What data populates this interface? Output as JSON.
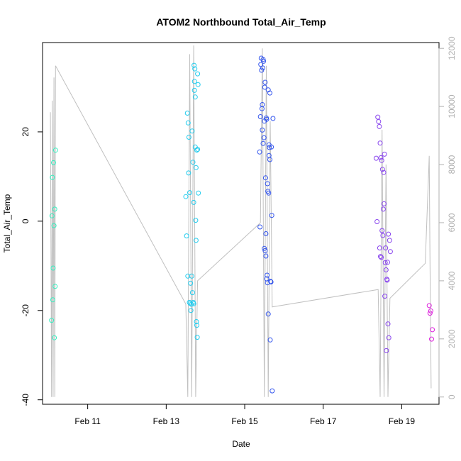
{
  "chart_data": {
    "type": "scatter",
    "title": "ATOM2 Northbound Total_Air_Temp",
    "xlabel": "Date",
    "ylabel": "Total_Air_Temp",
    "xlim": [
      9.85,
      19.95
    ],
    "ylim": [
      -41,
      40
    ],
    "y2lim": [
      -250,
      12200
    ],
    "x_ticks": [
      11,
      13,
      15,
      17,
      19
    ],
    "x_tick_labels": [
      "Feb 11",
      "Feb 13",
      "Feb 15",
      "Feb 17",
      "Feb 19"
    ],
    "y_ticks": [
      -40,
      -20,
      0,
      20
    ],
    "y_tick_labels": [
      "-40",
      "-20",
      "0",
      "20"
    ],
    "y2_ticks": [
      0,
      2000,
      4000,
      6000,
      8000,
      10000,
      12000
    ],
    "y2_tick_labels": [
      "0",
      "2000",
      "4000",
      "6000",
      "8000",
      "10000",
      "12000"
    ],
    "grid": false,
    "legend": "none",
    "series": [
      {
        "color": "#33f0c0",
        "x": [
          10.08,
          10.09,
          10.1,
          10.11,
          10.12,
          10.13,
          10.14,
          10.15,
          10.16,
          10.17,
          10.18
        ],
        "y": [
          -22.2,
          1.2,
          9.8,
          -17.6,
          -10.5,
          13.1,
          -1.0,
          -26.1,
          2.7,
          -14.6,
          15.9
        ]
      },
      {
        "color": "#22ccee",
        "x": [
          13.5,
          13.52,
          13.54,
          13.56,
          13.58,
          13.6,
          13.62,
          13.64,
          13.66,
          13.68,
          13.7,
          13.71,
          13.72,
          13.73,
          13.74,
          13.75,
          13.76,
          13.77,
          13.78,
          13.79,
          13.8,
          13.81,
          13.82,
          13.65,
          13.67,
          13.69,
          13.55,
          13.57,
          13.59,
          13.61,
          13.63,
          13.72,
          13.74,
          13.76,
          13.78,
          13.8,
          13.7
        ],
        "y": [
          5.5,
          -3.3,
          24.2,
          22.0,
          18.8,
          6.4,
          -13.9,
          -18.6,
          20.2,
          13.2,
          4.2,
          34.9,
          31.3,
          34.1,
          27.8,
          0.2,
          -4.3,
          -22.5,
          -23.3,
          -26.0,
          33.0,
          30.6,
          6.3,
          -12.3,
          -16.0,
          -18.2,
          -12.3,
          10.8,
          -18.2,
          -18.4,
          -20.0,
          29.3,
          16.6,
          12.0,
          15.9,
          16.1,
          -18.5
        ]
      },
      {
        "color": "#3355ee",
        "x": [
          15.38,
          15.39,
          15.4,
          15.41,
          15.42,
          15.43,
          15.44,
          15.45,
          15.46,
          15.47,
          15.48,
          15.49,
          15.5,
          15.51,
          15.52,
          15.53,
          15.54,
          15.55,
          15.56,
          15.57,
          15.58,
          15.59,
          15.6,
          15.61,
          15.62,
          15.63,
          15.64,
          15.65,
          15.66,
          15.67,
          15.68,
          15.69,
          15.7,
          15.72,
          15.5,
          15.52,
          15.54,
          15.56,
          15.58,
          15.6,
          15.62,
          15.64,
          15.45,
          15.47
        ],
        "y": [
          15.5,
          -1.3,
          23.4,
          35.1,
          36.5,
          33.8,
          25.2,
          26.1,
          34.3,
          36.2,
          35.8,
          18.7,
          22.4,
          30.0,
          31.1,
          9.7,
          -7.8,
          23.1,
          22.8,
          -12.1,
          8.4,
          6.7,
          -20.8,
          6.3,
          17.1,
          16.5,
          28.7,
          -26.6,
          -13.5,
          -13.6,
          16.6,
          1.3,
          -38.0,
          23.0,
          -6.1,
          -6.6,
          -2.8,
          -12.9,
          -13.8,
          29.4,
          14.7,
          13.8,
          20.4,
          17.4
        ]
      },
      {
        "color": "#8844ee",
        "x": [
          18.35,
          18.37,
          18.39,
          18.41,
          18.43,
          18.45,
          18.47,
          18.49,
          18.51,
          18.53,
          18.55,
          18.57,
          18.59,
          18.61,
          18.63,
          18.65,
          18.67,
          18.69,
          18.71,
          18.46,
          18.48,
          18.5,
          18.52,
          18.54,
          18.56,
          18.58,
          18.6,
          18.62,
          18.64,
          18.66,
          18.44
        ],
        "y": [
          14.1,
          -0.1,
          23.3,
          22.3,
          21.2,
          17.5,
          14.2,
          13.6,
          11.6,
          2.7,
          3.9,
          -16.8,
          -6.0,
          -29.0,
          -13.2,
          -23.0,
          -26.1,
          -4.3,
          -6.8,
          -7.9,
          -8.1,
          -2.1,
          -3.2,
          10.9,
          15.0,
          -9.3,
          -10.9,
          -13.0,
          -9.2,
          -2.9,
          -6.0
        ]
      },
      {
        "color": "#dd22dd",
        "x": [
          19.7,
          19.72,
          19.74,
          19.76,
          19.78
        ],
        "y": [
          -18.9,
          -20.6,
          -20.1,
          -26.4,
          -24.3
        ]
      }
    ],
    "line_series": {
      "color": "#c0c0c0",
      "axis": "right",
      "x": [
        10.05,
        10.08,
        10.1,
        10.12,
        10.14,
        10.16,
        10.18,
        13.5,
        13.55,
        13.6,
        13.65,
        13.7,
        13.75,
        13.8,
        15.4,
        15.45,
        15.5,
        15.55,
        15.6,
        15.65,
        15.7,
        18.4,
        18.45,
        18.5,
        18.55,
        18.6,
        18.65,
        18.7,
        19.6,
        19.7,
        19.72,
        19.75
      ],
      "y": [
        9800,
        0,
        10200,
        0,
        11000,
        0,
        11400,
        3200,
        0,
        11800,
        0,
        12100,
        0,
        4000,
        6000,
        12000,
        0,
        11400,
        0,
        9500,
        3100,
        3700,
        0,
        9200,
        0,
        8000,
        0,
        3400,
        4600,
        8300,
        4600,
        300
      ]
    }
  }
}
